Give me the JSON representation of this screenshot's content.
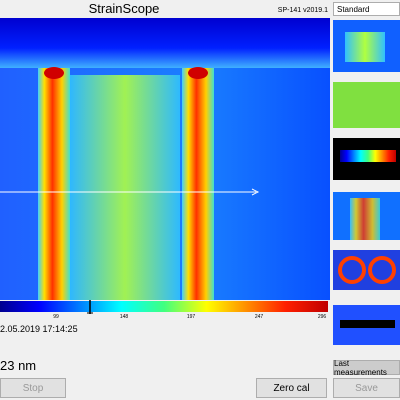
{
  "header": {
    "title": "StrainScope",
    "version": "SP-141 v2019.1"
  },
  "dropdown": {
    "selected": "Standard"
  },
  "colorbar": {
    "ticks": [
      99,
      148,
      197,
      247,
      296
    ]
  },
  "status": {
    "timestamp": "2.05.2019 17:14:25",
    "reading": "23 nm"
  },
  "buttons": {
    "last_measurements": "Last measurements",
    "stop": "Stop",
    "zero_cal": "Zero cal",
    "save": "Save"
  }
}
